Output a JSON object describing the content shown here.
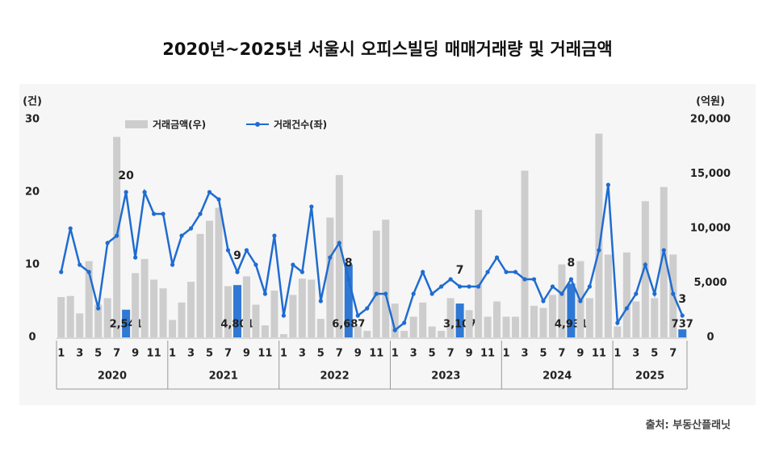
{
  "chart_data": {
    "type": "bar-line",
    "title": "2020년~2025년 서울시 오피스빌딩 매매거래량 및 거래금액",
    "y_unit": "(건)",
    "y2_unit": "(억원)",
    "source": "출처: 부동산플래닛",
    "categories": [
      "1",
      null,
      "3",
      null,
      "5",
      null,
      "7",
      null,
      "9",
      null,
      "11",
      null,
      "1",
      null,
      "3",
      null,
      "5",
      null,
      "7",
      null,
      "9",
      null,
      "11",
      null,
      "1",
      null,
      "3",
      null,
      "5",
      null,
      "7",
      null,
      "9",
      null,
      "11",
      null,
      "1",
      null,
      "3",
      null,
      "5",
      null,
      "7",
      null,
      "9",
      null,
      "11",
      null,
      "1",
      null,
      "3",
      null,
      "5",
      null,
      "7",
      null,
      "9",
      null,
      "11",
      null,
      "1",
      null,
      "3",
      null,
      "5",
      null,
      "7",
      null
    ],
    "groups": [
      "2020",
      "2021",
      "2022",
      "2023",
      "2024",
      "2025"
    ],
    "ylim": [
      0,
      30
    ],
    "yticks": [
      0,
      10,
      20,
      30
    ],
    "y2lim": [
      0,
      20000
    ],
    "y2ticks": [
      0,
      {
        "value": 5000,
        "label": "5,000"
      },
      {
        "value": 10000,
        "label": "10,000"
      },
      {
        "value": 15000,
        "label": "15,000"
      },
      {
        "value": 20000,
        "label": "20,000"
      }
    ],
    "series": [
      {
        "name": "거래금액(우)",
        "kind": "bar",
        "axis": "y2",
        "color": "#cdcdcd",
        "highlight_color": "#2f78d4",
        "values": [
          3700,
          3800,
          2200,
          7000,
          3000,
          3600,
          18400,
          2541,
          5900,
          7200,
          5300,
          4500,
          1600,
          3200,
          5100,
          9500,
          10700,
          11900,
          4700,
          4801,
          5600,
          3000,
          1100,
          4300,
          300,
          3900,
          5400,
          5300,
          1700,
          11000,
          14900,
          6687,
          1000,
          600,
          9800,
          10800,
          3100,
          600,
          1900,
          3200,
          1000,
          600,
          3600,
          3107,
          2500,
          11700,
          1900,
          3300,
          1900,
          1900,
          15300,
          2900,
          2700,
          3900,
          6700,
          4931,
          7000,
          3600,
          18700,
          7600,
          1000,
          7800,
          3300,
          12500,
          3600,
          13800,
          7600,
          737
        ],
        "value_labels": [
          null,
          null,
          null,
          null,
          null,
          null,
          null,
          "2,541",
          null,
          null,
          null,
          null,
          null,
          null,
          null,
          null,
          null,
          null,
          null,
          "4,801",
          null,
          null,
          null,
          null,
          null,
          null,
          null,
          null,
          null,
          null,
          null,
          "6,687",
          null,
          null,
          null,
          null,
          null,
          null,
          null,
          null,
          null,
          null,
          null,
          "3,107",
          null,
          null,
          null,
          null,
          null,
          null,
          null,
          null,
          null,
          null,
          null,
          "4,931",
          null,
          null,
          null,
          null,
          null,
          null,
          null,
          null,
          null,
          null,
          null,
          "737"
        ]
      },
      {
        "name": "거래건수(좌)",
        "kind": "line",
        "axis": "y",
        "color": "#1f6cd0",
        "values": [
          9,
          15,
          10,
          9,
          4,
          13,
          14,
          20,
          11,
          20,
          17,
          17,
          10,
          14,
          15,
          17,
          20,
          19,
          12,
          9,
          12,
          10,
          6,
          14,
          3,
          10,
          9,
          18,
          5,
          11,
          13,
          8,
          3,
          4,
          6,
          6,
          1,
          2,
          6,
          9,
          6,
          7,
          8,
          7,
          7,
          7,
          9,
          11,
          9,
          9,
          8,
          8,
          5,
          7,
          6,
          8,
          5,
          7,
          12,
          21,
          2,
          4,
          6,
          10,
          6,
          12,
          6,
          3
        ],
        "value_labels": [
          null,
          null,
          null,
          null,
          null,
          null,
          null,
          "20",
          null,
          null,
          null,
          null,
          null,
          null,
          null,
          null,
          null,
          null,
          null,
          "9",
          null,
          null,
          null,
          null,
          null,
          null,
          null,
          null,
          null,
          null,
          null,
          "8",
          null,
          null,
          null,
          null,
          null,
          null,
          null,
          null,
          null,
          null,
          null,
          "7",
          null,
          null,
          null,
          null,
          null,
          null,
          null,
          null,
          null,
          null,
          null,
          "8",
          null,
          null,
          null,
          null,
          null,
          null,
          null,
          null,
          null,
          null,
          null,
          "3"
        ]
      }
    ]
  }
}
